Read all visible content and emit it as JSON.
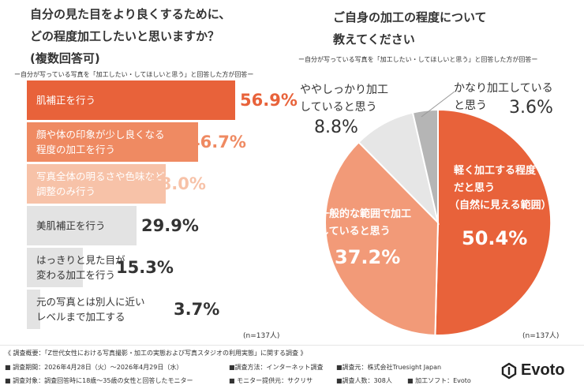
{
  "left": {
    "title_lines": [
      "自分の見た目をより良くするために、",
      "どの程度加工したいと思いますか？",
      "(複数回答可)"
    ],
    "subheading": "ー自分が写っている写真を「加工したい・してほしいと思う」と回答した方が回答ー",
    "n_label": "(n=137人)"
  },
  "right": {
    "title_lines": [
      "ご自身の加工の程度について",
      "教えてください"
    ],
    "subheading": "ー自分が写っている写真を「加工したい・してほしいと思う」と回答した方が回答ー",
    "n_label": "(n=137人)"
  },
  "chart_data": [
    {
      "type": "bar",
      "orientation": "horizontal",
      "categories": [
        "肌補正を行う",
        "顔や体の印象が少し良くなる程度の加工を行う",
        "写真全体の明るさや色味などの調整のみ行う",
        "美肌補正を行う",
        "はっきりと見た目が変わる加工を行う",
        "元の写真とは別人に近いレベルまで加工する"
      ],
      "category_lines": [
        [
          "肌補正を行う"
        ],
        [
          "顔や体の印象が少し良くなる",
          "程度の加工を行う"
        ],
        [
          "写真全体の明るさや色味などの",
          "調整のみ行う"
        ],
        [
          "美肌補正を行う"
        ],
        [
          "はっきりと見た目が",
          "変わる加工を行う"
        ],
        [
          "元の写真とは別人に近い",
          "レベルまで加工する"
        ]
      ],
      "values": [
        56.9,
        46.7,
        38.0,
        29.9,
        15.3,
        3.7
      ],
      "value_labels": [
        "56.9%",
        "46.7%",
        "38.0%",
        "29.9%",
        "15.3%",
        "3.7%"
      ],
      "colors": [
        "#e8623a",
        "#ef8a62",
        "#f7c2a8",
        "#e3e3e3",
        "#e3e3e3",
        "#e3e3e3"
      ],
      "value_colors": [
        "#e8623a",
        "#ef8a62",
        "#f7c2a8",
        "#333333",
        "#333333",
        "#333333"
      ],
      "label_colors": [
        "#ffffff",
        "#ffffff",
        "#ffffff",
        "#333333",
        "#333333",
        "#333333"
      ]
    },
    {
      "type": "pie",
      "labels": [
        "軽く加工する程度だと思う（自然に見える範囲）",
        "一般的な範囲で加工していると思う",
        "ややしっかり加工していると思う",
        "かなり加工していると思う"
      ],
      "label_lines": [
        [
          "軽く加工する程度",
          "だと思う",
          "（自然に見える範囲）"
        ],
        [
          "一般的な範囲で加工",
          "していると思う"
        ],
        [
          "ややしっかり加工",
          "していると思う"
        ],
        [
          "かなり加工している",
          "と思う"
        ]
      ],
      "values": [
        50.4,
        37.2,
        8.8,
        3.6
      ],
      "value_labels": [
        "50.4%",
        "37.2%",
        "8.8%",
        "3.6%"
      ],
      "colors": [
        "#e8623a",
        "#f29a78",
        "#e6e6e6",
        "#b5b5b5"
      ]
    }
  ],
  "footer": {
    "line1": "《 調査概要：「Z世代女性における写真撮影・加工の実態および写真スタジオの利用実態」に関する調査 》",
    "line2": [
      "■ 調査期間：2026年4月28日（火）～2026年4月29日（水）",
      "■調査方法：インターネット調査",
      "■調査元：株式会社Truesight Japan"
    ],
    "line3": [
      "■ 調査対象：調査回答時に18歳～35歳の女性と回答したモニター",
      "■ モニター提供元：サクリサ",
      "■調査人数：308人",
      "■ 加工ソフト：Evoto"
    ]
  },
  "logo": {
    "text": "Evoto",
    "icon": "evoto-logo-icon"
  }
}
